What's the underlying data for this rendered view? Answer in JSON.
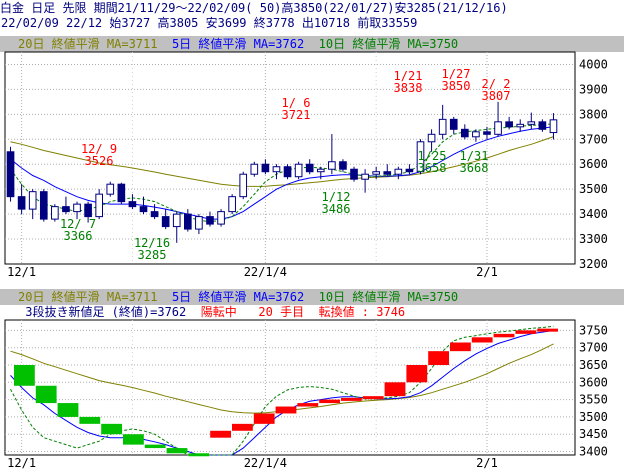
{
  "header": {
    "line1": "白金 日足 先限 期間21/11/29～22/02/09( 50)高3850(22/01/27)安3285(21/12/16)",
    "line2": "22/02/09 22/12 始3727 高3805 安3699 終3778 出10718 前取33559"
  },
  "colors": {
    "up_candle": "#ffffff",
    "down_candle": "#000080",
    "ma20": "#808000",
    "ma5": "#0000ff",
    "ma10": "#008000",
    "bull_brick": "#ff0000",
    "bear_brick": "#00c000",
    "legend_bg": "#c0c0c0"
  },
  "legend_top": {
    "ma20": "20日 終値平滑 MA=3711",
    "ma5": "5日 終値平滑 MA=3762",
    "ma10": "10日 終値平滑 MA=3750"
  },
  "legend_bottom": {
    "ma20": "20日 終値平滑 MA=3711",
    "ma5": "5日 終値平滑 MA=3762",
    "ma10": "10日 終値平滑 MA=3750",
    "sanpe_label": " 3段抜き新値足 (終値)=3762",
    "sanpe_status": "陽転中",
    "sanpe_count": "20 手目",
    "sanpe_reversal": "転換値 : 3746"
  },
  "chart_data": [
    {
      "type": "candlestick",
      "x_tick_labels": [
        "12/1",
        "22/1/4",
        "2/1"
      ],
      "y_ticks": [
        3200,
        3300,
        3400,
        3500,
        3600,
        3700,
        3800,
        3900,
        4000
      ],
      "ylim": [
        3200,
        4050
      ],
      "grid": true,
      "candles": [
        {
          "o": 3650,
          "h": 3670,
          "l": 3450,
          "c": 3470
        },
        {
          "o": 3470,
          "h": 3520,
          "l": 3400,
          "c": 3420
        },
        {
          "o": 3420,
          "h": 3500,
          "l": 3380,
          "c": 3490
        },
        {
          "o": 3490,
          "h": 3500,
          "l": 3370,
          "c": 3380
        },
        {
          "o": 3380,
          "h": 3440,
          "l": 3370,
          "c": 3430
        },
        {
          "o": 3430,
          "h": 3470,
          "l": 3400,
          "c": 3410
        },
        {
          "o": 3410,
          "h": 3450,
          "l": 3380,
          "c": 3440
        },
        {
          "o": 3440,
          "h": 3450,
          "l": 3366,
          "c": 3390
        },
        {
          "o": 3390,
          "h": 3500,
          "l": 3380,
          "c": 3480
        },
        {
          "o": 3480,
          "h": 3530,
          "l": 3470,
          "c": 3520
        },
        {
          "o": 3520,
          "h": 3526,
          "l": 3440,
          "c": 3450
        },
        {
          "o": 3450,
          "h": 3480,
          "l": 3420,
          "c": 3430
        },
        {
          "o": 3430,
          "h": 3470,
          "l": 3400,
          "c": 3410
        },
        {
          "o": 3410,
          "h": 3440,
          "l": 3380,
          "c": 3390
        },
        {
          "o": 3390,
          "h": 3420,
          "l": 3340,
          "c": 3350
        },
        {
          "o": 3350,
          "h": 3410,
          "l": 3285,
          "c": 3400
        },
        {
          "o": 3400,
          "h": 3420,
          "l": 3330,
          "c": 3340
        },
        {
          "o": 3340,
          "h": 3400,
          "l": 3320,
          "c": 3390
        },
        {
          "o": 3390,
          "h": 3410,
          "l": 3350,
          "c": 3360
        },
        {
          "o": 3360,
          "h": 3420,
          "l": 3350,
          "c": 3410
        },
        {
          "o": 3410,
          "h": 3480,
          "l": 3400,
          "c": 3470
        },
        {
          "o": 3470,
          "h": 3570,
          "l": 3460,
          "c": 3560
        },
        {
          "o": 3560,
          "h": 3610,
          "l": 3550,
          "c": 3600
        },
        {
          "o": 3600,
          "h": 3620,
          "l": 3560,
          "c": 3570
        },
        {
          "o": 3570,
          "h": 3600,
          "l": 3540,
          "c": 3590
        },
        {
          "o": 3590,
          "h": 3600,
          "l": 3540,
          "c": 3550
        },
        {
          "o": 3550,
          "h": 3610,
          "l": 3540,
          "c": 3600
        },
        {
          "o": 3600,
          "h": 3620,
          "l": 3560,
          "c": 3570
        },
        {
          "o": 3570,
          "h": 3590,
          "l": 3540,
          "c": 3580
        },
        {
          "o": 3580,
          "h": 3721,
          "l": 3560,
          "c": 3610
        },
        {
          "o": 3610,
          "h": 3620,
          "l": 3570,
          "c": 3580
        },
        {
          "o": 3580,
          "h": 3590,
          "l": 3530,
          "c": 3540
        },
        {
          "o": 3540,
          "h": 3580,
          "l": 3486,
          "c": 3560
        },
        {
          "o": 3560,
          "h": 3590,
          "l": 3540,
          "c": 3570
        },
        {
          "o": 3570,
          "h": 3600,
          "l": 3550,
          "c": 3560
        },
        {
          "o": 3560,
          "h": 3590,
          "l": 3540,
          "c": 3580
        },
        {
          "o": 3580,
          "h": 3600,
          "l": 3560,
          "c": 3570
        },
        {
          "o": 3570,
          "h": 3700,
          "l": 3560,
          "c": 3690
        },
        {
          "o": 3690,
          "h": 3740,
          "l": 3650,
          "c": 3720
        },
        {
          "o": 3720,
          "h": 3838,
          "l": 3700,
          "c": 3780
        },
        {
          "o": 3780,
          "h": 3790,
          "l": 3720,
          "c": 3740
        },
        {
          "o": 3740,
          "h": 3760,
          "l": 3700,
          "c": 3710
        },
        {
          "o": 3710,
          "h": 3740,
          "l": 3690,
          "c": 3730
        },
        {
          "o": 3730,
          "h": 3750,
          "l": 3700,
          "c": 3720
        },
        {
          "o": 3720,
          "h": 3850,
          "l": 3710,
          "c": 3770
        },
        {
          "o": 3770,
          "h": 3790,
          "l": 3740,
          "c": 3750
        },
        {
          "o": 3750,
          "h": 3780,
          "l": 3730,
          "c": 3760
        },
        {
          "o": 3760,
          "h": 3807,
          "l": 3740,
          "c": 3770
        },
        {
          "o": 3770,
          "h": 3780,
          "l": 3730,
          "c": 3740
        },
        {
          "o": 3727,
          "h": 3805,
          "l": 3699,
          "c": 3778
        }
      ],
      "series": [
        {
          "values": [
            3690,
            3680,
            3668,
            3655,
            3645,
            3635,
            3625,
            3615,
            3605,
            3598,
            3592,
            3585,
            3577,
            3569,
            3560,
            3552,
            3544,
            3536,
            3528,
            3520,
            3515,
            3512,
            3511,
            3512,
            3515,
            3518,
            3522,
            3526,
            3530,
            3535,
            3540,
            3543,
            3546,
            3548,
            3550,
            3553,
            3556,
            3562,
            3570,
            3580,
            3590,
            3600,
            3612,
            3625,
            3640,
            3655,
            3668,
            3680,
            3695,
            3711
          ]
        },
        {
          "values": [
            3620,
            3585,
            3555,
            3535,
            3510,
            3490,
            3470,
            3455,
            3445,
            3440,
            3440,
            3440,
            3435,
            3428,
            3420,
            3410,
            3400,
            3390,
            3380,
            3380,
            3390,
            3410,
            3440,
            3470,
            3500,
            3520,
            3535,
            3545,
            3550,
            3555,
            3558,
            3558,
            3555,
            3552,
            3552,
            3554,
            3558,
            3570,
            3590,
            3615,
            3640,
            3662,
            3682,
            3698,
            3712,
            3722,
            3732,
            3740,
            3745,
            3750
          ]
        },
        {
          "values": [
            3580,
            3520,
            3470,
            3440,
            3430,
            3420,
            3410,
            3420,
            3430,
            3450,
            3460,
            3465,
            3460,
            3450,
            3430,
            3410,
            3390,
            3375,
            3370,
            3375,
            3390,
            3430,
            3480,
            3530,
            3560,
            3578,
            3585,
            3588,
            3585,
            3580,
            3570,
            3560,
            3552,
            3552,
            3555,
            3560,
            3570,
            3600,
            3640,
            3690,
            3720,
            3730,
            3735,
            3740,
            3745,
            3748,
            3752,
            3756,
            3758,
            3762
          ]
        }
      ],
      "annotations": [
        {
          "label": "12/ 9",
          "value": "3526",
          "kind": "high"
        },
        {
          "label": "12/ 7",
          "value": "3366",
          "kind": "low"
        },
        {
          "label": "12/16",
          "value": "3285",
          "kind": "low"
        },
        {
          "label": "1/ 6",
          "value": "3721",
          "kind": "high"
        },
        {
          "label": "1/12",
          "value": "3486",
          "kind": "low"
        },
        {
          "label": "1/21",
          "value": "3838",
          "kind": "high"
        },
        {
          "label": "1/27",
          "value": "3850",
          "kind": "high"
        },
        {
          "label": "2/ 2",
          "value": "3807",
          "kind": "high"
        },
        {
          "label": "1/25",
          "value": "3658",
          "kind": "low"
        },
        {
          "label": "1/31",
          "value": "3668",
          "kind": "low"
        }
      ]
    },
    {
      "type": "line",
      "x_tick_labels": [
        "12/1",
        "22/1/4",
        "2/1"
      ],
      "y_ticks": [
        3400,
        3450,
        3500,
        3550,
        3600,
        3650,
        3700,
        3750
      ],
      "ylim": [
        3390,
        3780
      ],
      "grid": true,
      "bricks": [
        {
          "i": 0,
          "lo": 3590,
          "hi": 3650,
          "d": -1
        },
        {
          "i": 1,
          "lo": 3540,
          "hi": 3590,
          "d": -1
        },
        {
          "i": 2,
          "lo": 3500,
          "hi": 3540,
          "d": -1
        },
        {
          "i": 3,
          "lo": 3480,
          "hi": 3500,
          "d": -1
        },
        {
          "i": 4,
          "lo": 3450,
          "hi": 3480,
          "d": -1
        },
        {
          "i": 5,
          "lo": 3420,
          "hi": 3450,
          "d": -1
        },
        {
          "i": 6,
          "lo": 3410,
          "hi": 3420,
          "d": -1
        },
        {
          "i": 7,
          "lo": 3395,
          "hi": 3410,
          "d": -1
        },
        {
          "i": 8,
          "lo": 3390,
          "hi": 3395,
          "d": -1
        },
        {
          "i": 9,
          "lo": 3440,
          "hi": 3460,
          "d": 1
        },
        {
          "i": 10,
          "lo": 3460,
          "hi": 3480,
          "d": 1
        },
        {
          "i": 11,
          "lo": 3480,
          "hi": 3510,
          "d": 1
        },
        {
          "i": 12,
          "lo": 3510,
          "hi": 3530,
          "d": 1
        },
        {
          "i": 13,
          "lo": 3530,
          "hi": 3540,
          "d": 1
        },
        {
          "i": 14,
          "lo": 3540,
          "hi": 3550,
          "d": 1
        },
        {
          "i": 15,
          "lo": 3550,
          "hi": 3555,
          "d": 1
        },
        {
          "i": 16,
          "lo": 3555,
          "hi": 3560,
          "d": 1
        },
        {
          "i": 17,
          "lo": 3560,
          "hi": 3600,
          "d": 1
        },
        {
          "i": 18,
          "lo": 3600,
          "hi": 3650,
          "d": 1
        },
        {
          "i": 19,
          "lo": 3650,
          "hi": 3690,
          "d": 1
        },
        {
          "i": 20,
          "lo": 3690,
          "hi": 3715,
          "d": 1
        },
        {
          "i": 21,
          "lo": 3715,
          "hi": 3730,
          "d": 1
        },
        {
          "i": 22,
          "lo": 3730,
          "hi": 3740,
          "d": 1
        },
        {
          "i": 23,
          "lo": 3740,
          "hi": 3750,
          "d": 1
        },
        {
          "i": 24,
          "lo": 3748,
          "hi": 3755,
          "d": 1
        }
      ]
    }
  ]
}
